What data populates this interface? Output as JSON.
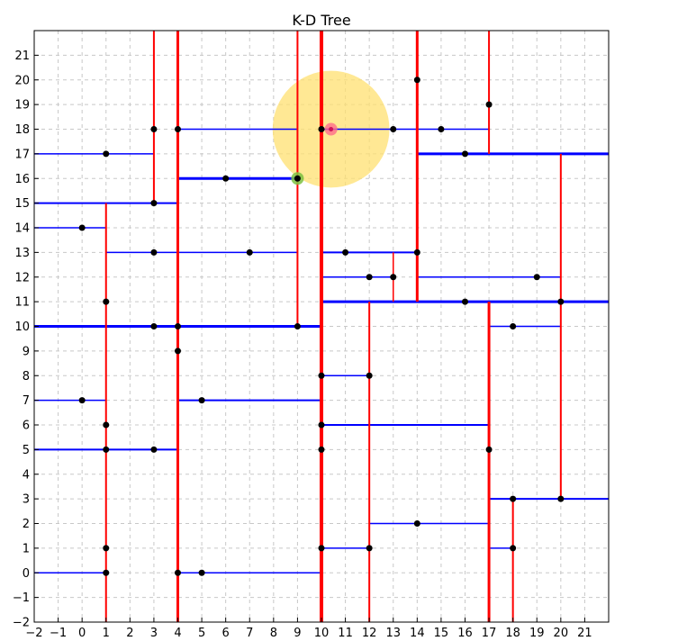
{
  "chart_data": {
    "type": "scatter",
    "title": "K-D Tree",
    "xlabel": "",
    "ylabel": "",
    "xlim": [
      -2,
      22
    ],
    "ylim": [
      -2,
      22
    ],
    "x_ticks": [
      -2,
      -1,
      0,
      1,
      2,
      3,
      4,
      5,
      6,
      7,
      8,
      9,
      10,
      11,
      12,
      13,
      14,
      15,
      16,
      17,
      18,
      19,
      20,
      21
    ],
    "y_ticks": [
      -2,
      -1,
      0,
      1,
      2,
      3,
      4,
      5,
      6,
      7,
      8,
      9,
      10,
      11,
      12,
      13,
      14,
      15,
      16,
      17,
      18,
      19,
      20,
      21
    ],
    "grid": true,
    "colors": {
      "vertical_split": "#ff0000",
      "horizontal_split": "#0000ff",
      "point": "#000000",
      "search_radius": "#ffe070",
      "query_point": "#ff6b8a",
      "nearest_point": "#7cc142",
      "grid": "#c8c8c8"
    },
    "points": [
      [
        10,
        18
      ],
      [
        9,
        16
      ],
      [
        14,
        20
      ],
      [
        17,
        19
      ],
      [
        13,
        18
      ],
      [
        15,
        18
      ],
      [
        16,
        17
      ],
      [
        3,
        18
      ],
      [
        4,
        18
      ],
      [
        1,
        17
      ],
      [
        6,
        16
      ],
      [
        3,
        15
      ],
      [
        0,
        14
      ],
      [
        3,
        13
      ],
      [
        7,
        13
      ],
      [
        11,
        13
      ],
      [
        14,
        13
      ],
      [
        12,
        12
      ],
      [
        13,
        12
      ],
      [
        19,
        12
      ],
      [
        1,
        11
      ],
      [
        16,
        11
      ],
      [
        20,
        11
      ],
      [
        3,
        10
      ],
      [
        4,
        10
      ],
      [
        9,
        10
      ],
      [
        18,
        10
      ],
      [
        4,
        9
      ],
      [
        10,
        8
      ],
      [
        12,
        8
      ],
      [
        0,
        7
      ],
      [
        5,
        7
      ],
      [
        1,
        6
      ],
      [
        10,
        6
      ],
      [
        1,
        5
      ],
      [
        3,
        5
      ],
      [
        10,
        5
      ],
      [
        17,
        5
      ],
      [
        18,
        3
      ],
      [
        20,
        3
      ],
      [
        14,
        2
      ],
      [
        1,
        1
      ],
      [
        10,
        1
      ],
      [
        12,
        1
      ],
      [
        18,
        1
      ],
      [
        1,
        0
      ],
      [
        4,
        0
      ],
      [
        5,
        0
      ]
    ],
    "query_point": [
      10.4,
      18
    ],
    "nearest_point": [
      9,
      16
    ],
    "search_radius": 2.44,
    "vertical_splits": [
      {
        "x": 10,
        "y1": -2,
        "y2": 22,
        "w": 4
      },
      {
        "x": 4,
        "y1": -2,
        "y2": 22,
        "w": 3
      },
      {
        "x": 1,
        "y1": -2,
        "y2": 15,
        "w": 2
      },
      {
        "x": 3,
        "y1": 15,
        "y2": 22,
        "w": 2
      },
      {
        "x": 9,
        "y1": 10,
        "y2": 22,
        "w": 2
      },
      {
        "x": 14,
        "y1": 11,
        "y2": 22,
        "w": 3
      },
      {
        "x": 17,
        "y1": 17,
        "y2": 22,
        "w": 2
      },
      {
        "x": 13,
        "y1": 11,
        "y2": 13,
        "w": 1.5
      },
      {
        "x": 20,
        "y1": 3,
        "y2": 17,
        "w": 2
      },
      {
        "x": 17,
        "y1": -2,
        "y2": 11,
        "w": 3
      },
      {
        "x": 12,
        "y1": -2,
        "y2": 11,
        "w": 2
      },
      {
        "x": 18,
        "y1": -2,
        "y2": 3,
        "w": 2
      }
    ],
    "horizontal_splits": [
      {
        "y": 10,
        "x1": -2,
        "x2": 10,
        "w": 3
      },
      {
        "y": 15,
        "x1": -2,
        "x2": 4,
        "w": 2
      },
      {
        "y": 17,
        "x1": -2,
        "x2": 3,
        "w": 1.5
      },
      {
        "y": 14,
        "x1": -2,
        "x2": 1,
        "w": 1.5
      },
      {
        "y": 5,
        "x1": -2,
        "x2": 4,
        "w": 2
      },
      {
        "y": 7,
        "x1": -2,
        "x2": 1,
        "w": 1.5
      },
      {
        "y": 0,
        "x1": -2,
        "x2": 1,
        "w": 1.5
      },
      {
        "y": 13,
        "x1": 1,
        "x2": 9,
        "w": 1.5
      },
      {
        "y": 16,
        "x1": 4,
        "x2": 9,
        "w": 3
      },
      {
        "y": 18,
        "x1": 4,
        "x2": 9,
        "w": 1.5
      },
      {
        "y": 7,
        "x1": 4,
        "x2": 10,
        "w": 2
      },
      {
        "y": 0,
        "x1": 4,
        "x2": 10,
        "w": 1.5
      },
      {
        "y": 11,
        "x1": 10,
        "x2": 22,
        "w": 3
      },
      {
        "y": 13,
        "x1": 10,
        "x2": 14,
        "w": 2
      },
      {
        "y": 12,
        "x1": 10,
        "x2": 13,
        "w": 1.5
      },
      {
        "y": 18,
        "x1": 10,
        "x2": 17,
        "w": 1.5
      },
      {
        "y": 17,
        "x1": 14,
        "x2": 22,
        "w": 3
      },
      {
        "y": 12,
        "x1": 14,
        "x2": 20,
        "w": 1.5
      },
      {
        "y": 6,
        "x1": 10,
        "x2": 17,
        "w": 2
      },
      {
        "y": 8,
        "x1": 10,
        "x2": 12,
        "w": 1.5
      },
      {
        "y": 1,
        "x1": 10,
        "x2": 12,
        "w": 1.5
      },
      {
        "y": 2,
        "x1": 12,
        "x2": 17,
        "w": 1.5
      },
      {
        "y": 10,
        "x1": 17,
        "x2": 20,
        "w": 1.5
      },
      {
        "y": 3,
        "x1": 17,
        "x2": 22,
        "w": 2
      },
      {
        "y": 1,
        "x1": 17,
        "x2": 18,
        "w": 1.5
      }
    ]
  }
}
